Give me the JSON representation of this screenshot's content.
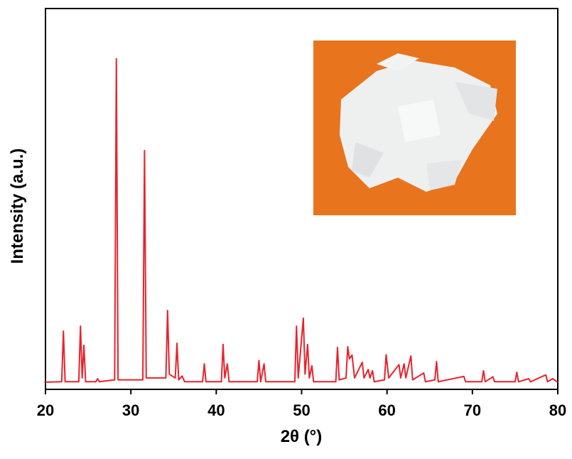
{
  "chart_data": {
    "type": "line",
    "x_label": "2θ (°)",
    "y_label": "Intensity (a.u.)",
    "x": [
      20,
      21.9,
      22.1,
      22.3,
      23.9,
      24.1,
      24.3,
      24.5,
      24.7,
      25.9,
      26.1,
      26.3,
      28.1,
      28.3,
      28.5,
      31.4,
      31.6,
      31.8,
      34.1,
      34.3,
      34.5,
      35.2,
      35.4,
      35.6,
      36.0,
      36.3,
      38.4,
      38.6,
      38.8,
      40.6,
      40.8,
      41.0,
      41.3,
      41.5,
      44.8,
      45.0,
      45.2,
      45.6,
      45.8,
      49.2,
      49.4,
      49.6,
      50.2,
      50.4,
      50.7,
      50.9,
      51.2,
      51.4,
      54.0,
      54.2,
      54.4,
      55.2,
      55.4,
      55.6,
      55.9,
      56.2,
      57.1,
      57.3,
      57.8,
      58.0,
      58.3,
      58.5,
      59.7,
      59.9,
      60.2,
      61.4,
      61.6,
      62.0,
      62.2,
      62.8,
      63.0,
      64.3,
      64.5,
      65.6,
      65.8,
      66.0,
      69.0,
      69.2,
      71.1,
      71.3,
      71.5,
      72.4,
      72.6,
      75.0,
      75.2,
      75.4,
      76.6,
      76.8,
      78.6,
      78.8,
      79.4,
      80
    ],
    "series": [
      {
        "color": "#e8232c",
        "values": [
          1.9,
          2,
          15.3,
          2,
          2,
          16.6,
          3,
          11.6,
          2,
          2,
          2.8,
          2,
          2.5,
          86.8,
          2.5,
          2.5,
          62.7,
          3,
          3,
          20.7,
          4,
          3,
          12.1,
          2.5,
          3.5,
          2,
          2,
          6.7,
          2,
          2,
          11.8,
          3,
          6.7,
          2,
          2,
          7.6,
          2,
          6.7,
          2,
          2,
          16.6,
          3,
          18.7,
          4,
          11.8,
          3,
          6.2,
          2,
          2,
          11,
          2.5,
          3,
          11.2,
          8,
          9,
          3,
          7.1,
          3,
          5.2,
          3,
          4.9,
          2,
          2.5,
          9.1,
          3,
          6.5,
          3,
          6.7,
          3,
          8.8,
          2.5,
          4.3,
          2,
          2.5,
          7.3,
          2,
          3.4,
          2,
          2,
          4.9,
          2,
          3.3,
          2,
          2,
          4.5,
          2,
          2.8,
          2,
          3.8,
          2,
          2.8,
          1.9
        ]
      }
    ],
    "xlim": [
      20,
      80
    ],
    "xticks": [
      20,
      30,
      40,
      50,
      60,
      70,
      80
    ],
    "ylim": [
      0,
      100
    ]
  }
}
